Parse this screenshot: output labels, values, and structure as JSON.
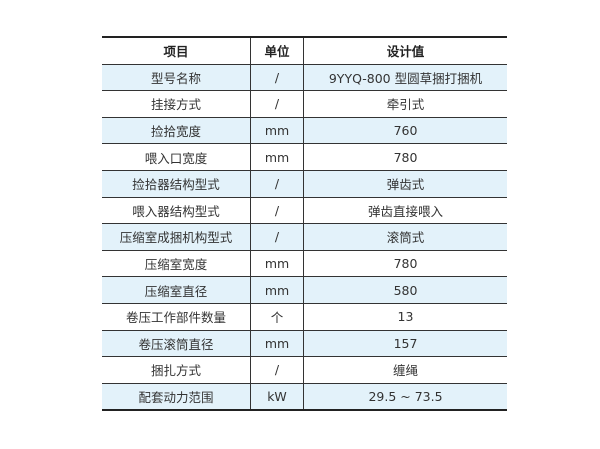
{
  "headers": [
    "项目",
    "单位",
    "设计值"
  ],
  "rows": [
    [
      "型号名称",
      "/",
      "9YYQ-800 型圆草捆打捆机"
    ],
    [
      "挂接方式",
      "/",
      "牵引式"
    ],
    [
      "捡拾宽度",
      "mm",
      "760"
    ],
    [
      "喂入口宽度",
      "mm",
      "780"
    ],
    [
      "捡拾器结构型式",
      "/",
      "弹齿式"
    ],
    [
      "喂入器结构型式",
      "/",
      "弹齿直接喂入"
    ],
    [
      "压缩室成捆机构型式",
      "/",
      "滚筒式"
    ],
    [
      "压缩室宽度",
      "mm",
      "780"
    ],
    [
      "压缩室直径",
      "mm",
      "580"
    ],
    [
      "卷压工作部件数量",
      "个",
      "13"
    ],
    [
      "卷压滚筒直径",
      "mm",
      "157"
    ],
    [
      "捆扎方式",
      "/",
      "缠绳"
    ],
    [
      "配套动力范围",
      "kW",
      "29.5 ~ 73.5"
    ]
  ],
  "colors": {
    "alt_row": "#e3f2fa",
    "rule": "#333333"
  }
}
